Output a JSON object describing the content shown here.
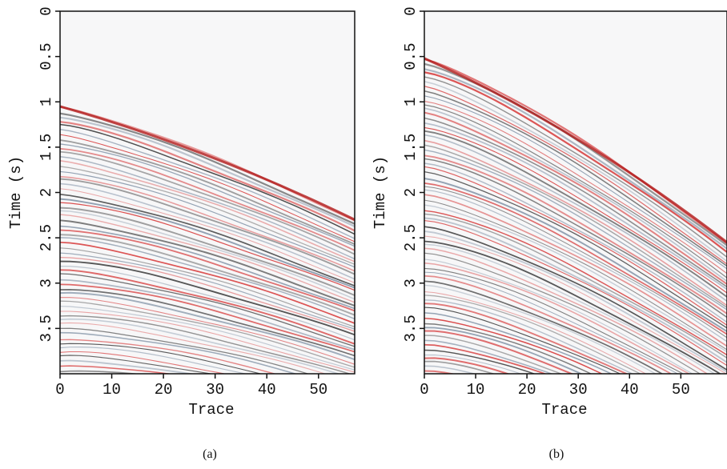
{
  "chart_data": [
    {
      "type": "seismic",
      "xlabel": "Trace",
      "ylabel": "Time (s)",
      "caption": "(a)",
      "xlim": [
        0,
        57
      ],
      "ylim": [
        0,
        4
      ],
      "xticks": [
        0,
        10,
        20,
        30,
        40,
        50
      ],
      "yticks": [
        0,
        0.5,
        1,
        1.5,
        2,
        2.5,
        3,
        3.5
      ]
    },
    {
      "type": "seismic",
      "xlabel": "Trace",
      "ylabel": "Time (s)",
      "caption": "(b)",
      "xlim": [
        0,
        59
      ],
      "ylim": [
        0,
        4
      ],
      "xticks": [
        0,
        10,
        20,
        30,
        40,
        50
      ],
      "yticks": [
        0,
        0.5,
        1,
        1.5,
        2,
        2.5,
        3,
        3.5
      ]
    }
  ]
}
